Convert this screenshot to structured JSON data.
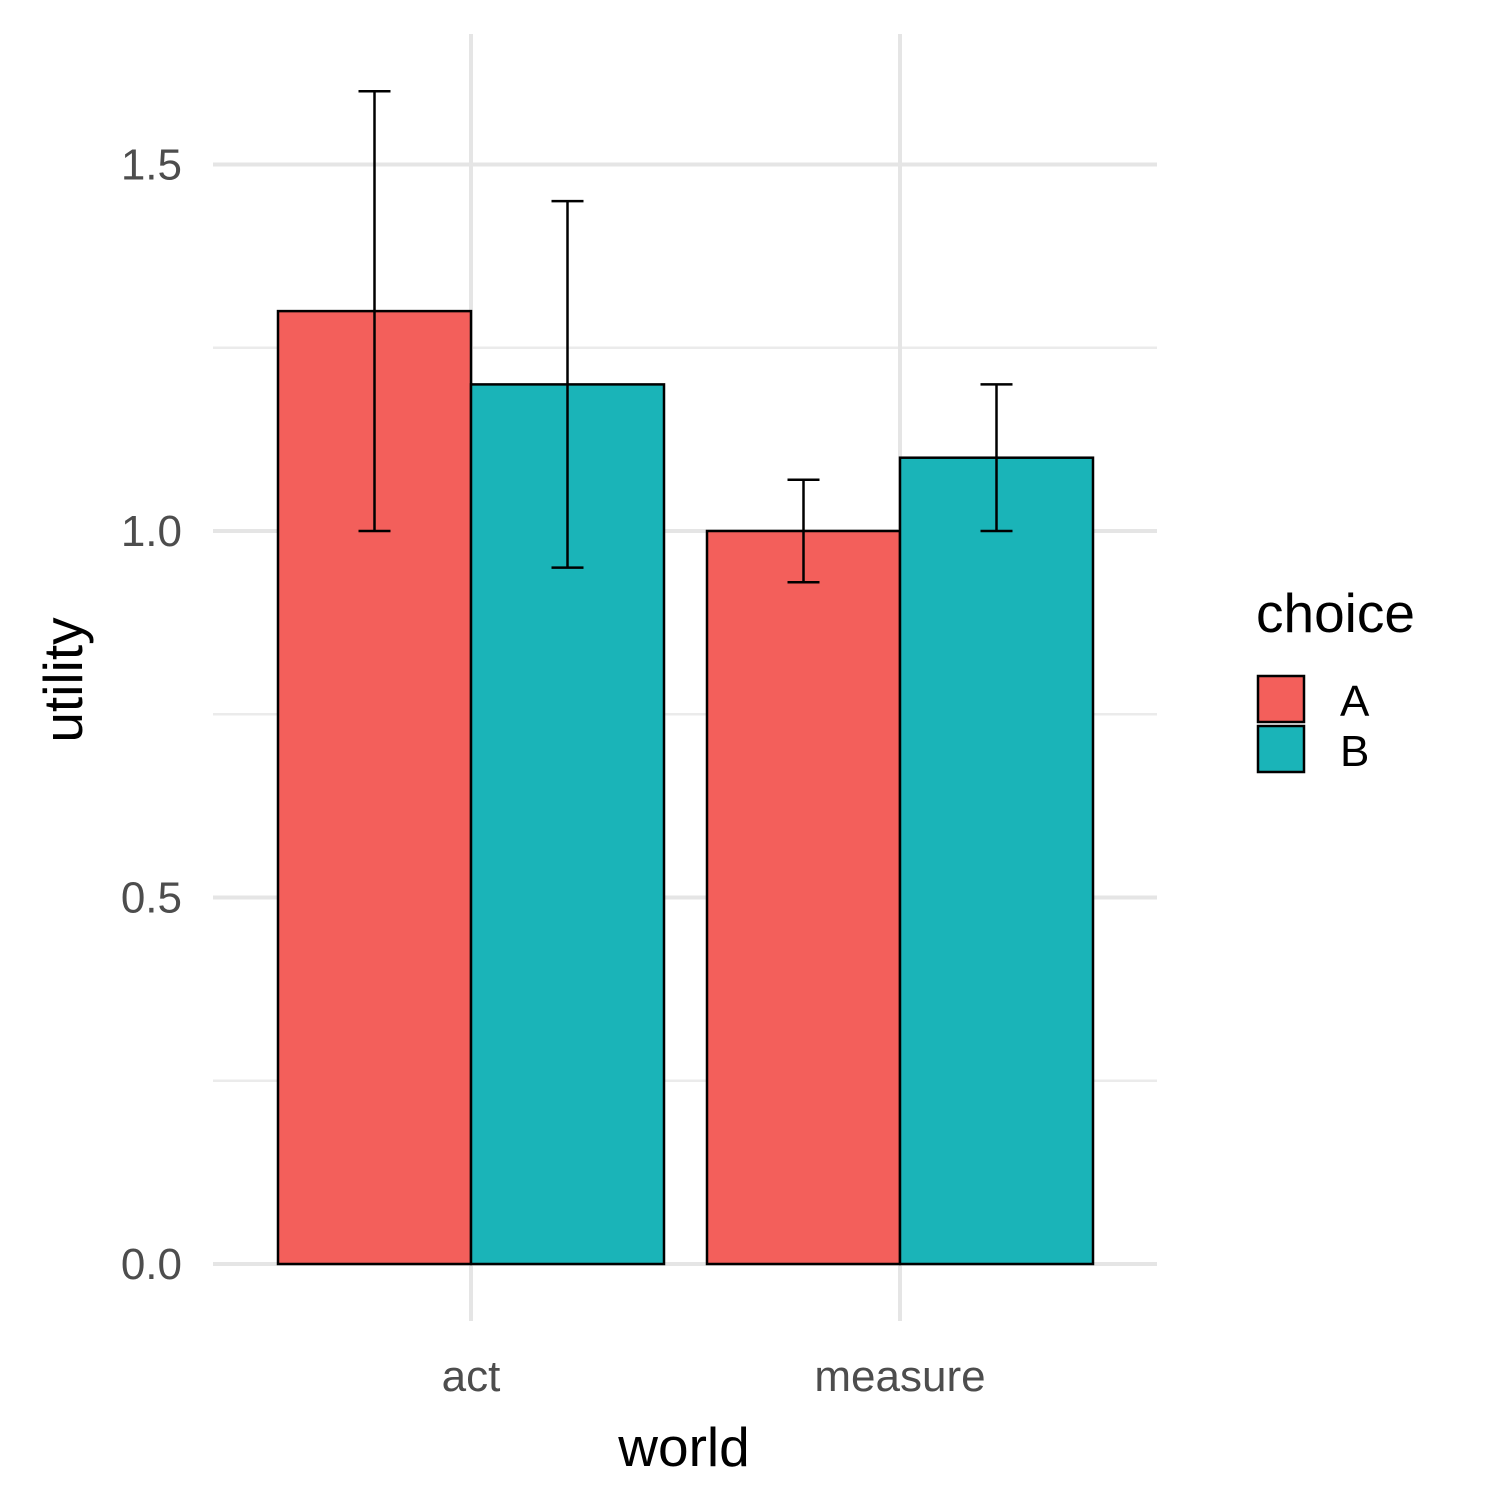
{
  "chart_data": {
    "type": "bar",
    "xlabel": "world",
    "ylabel": "utility",
    "categories": [
      "act",
      "measure"
    ],
    "ylim": [
      -0.076,
      1.678
    ],
    "yticks": [
      "0.0",
      "0.5",
      "1.0",
      "1.5"
    ],
    "ytick_values": [
      0.0,
      0.5,
      1.0,
      1.5
    ],
    "grid": true,
    "legend": {
      "title": "choice",
      "position": "right"
    },
    "series": [
      {
        "name": "A",
        "color": "#F35F5B",
        "values": [
          1.3,
          1.0
        ],
        "error_low": [
          1.0,
          0.93
        ],
        "error_high": [
          1.6,
          1.07
        ]
      },
      {
        "name": "B",
        "color": "#1AB4B8",
        "values": [
          1.2,
          1.1
        ],
        "error_low": [
          0.95,
          1.0
        ],
        "error_high": [
          1.45,
          1.2
        ]
      }
    ]
  }
}
